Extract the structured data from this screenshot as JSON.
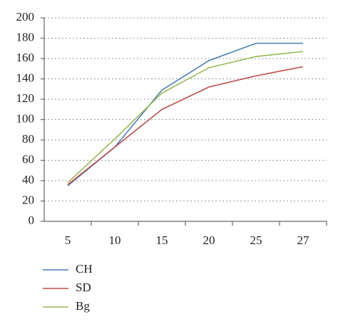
{
  "chart_data": {
    "type": "line",
    "categories": [
      "5",
      "10",
      "15",
      "20",
      "25",
      "27"
    ],
    "series": [
      {
        "name": "CH",
        "color": "#4a7ebb",
        "values": [
          35,
          73,
          129,
          158,
          175,
          175
        ]
      },
      {
        "name": "SD",
        "color": "#be4b48",
        "values": [
          36,
          73,
          110,
          132,
          143,
          152
        ]
      },
      {
        "name": "Bg",
        "color": "#98b954",
        "values": [
          38,
          81,
          126,
          151,
          162,
          167
        ]
      }
    ],
    "ylim": [
      0,
      200
    ],
    "yticks": [
      0,
      20,
      40,
      60,
      80,
      100,
      120,
      140,
      160,
      180,
      200
    ],
    "grid": true,
    "legend": "bottom-left"
  }
}
